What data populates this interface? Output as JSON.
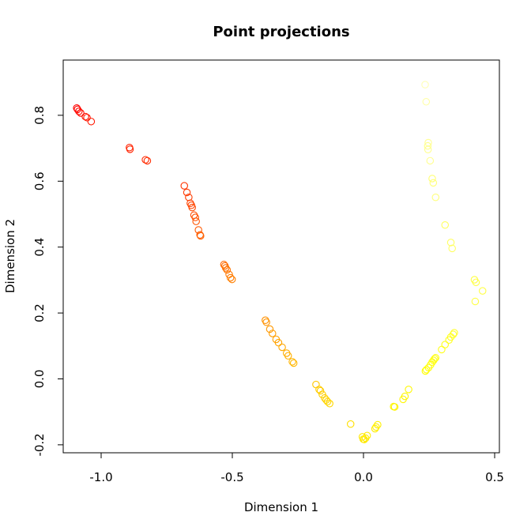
{
  "chart_data": {
    "type": "scatter",
    "title": "Point projections",
    "xlabel": "Dimension 1",
    "ylabel": "Dimension 2",
    "xlim": [
      -1.1,
      0.5
    ],
    "ylim": [
      -0.2,
      0.9
    ],
    "xticks": [
      -1.0,
      -0.5,
      0.0,
      0.5
    ],
    "xtick_labels": [
      "-1.0",
      "-0.5",
      "0.0",
      "0.5"
    ],
    "yticks": [
      -0.2,
      0.0,
      0.2,
      0.4,
      0.6,
      0.8
    ],
    "ytick_labels": [
      "-0.2",
      "0.0",
      "0.2",
      "0.4",
      "0.6",
      "0.8"
    ],
    "grid": false,
    "marker": "open-circle",
    "color_scale": [
      "#ff0000",
      "#ff6400",
      "#ffc800",
      "#ffff00",
      "#ffffbe"
    ],
    "points": [
      {
        "x": -1.093,
        "y": 0.822,
        "c": 0.0
      },
      {
        "x": -1.09,
        "y": 0.818,
        "c": 0.01
      },
      {
        "x": -1.085,
        "y": 0.812,
        "c": 0.02
      },
      {
        "x": -1.078,
        "y": 0.807,
        "c": 0.03
      },
      {
        "x": -1.06,
        "y": 0.796,
        "c": 0.04
      },
      {
        "x": -1.054,
        "y": 0.793,
        "c": 0.05
      },
      {
        "x": -1.038,
        "y": 0.781,
        "c": 0.06
      },
      {
        "x": -0.892,
        "y": 0.702,
        "c": 0.08
      },
      {
        "x": -0.89,
        "y": 0.697,
        "c": 0.09
      },
      {
        "x": -0.831,
        "y": 0.665,
        "c": 0.1
      },
      {
        "x": -0.824,
        "y": 0.662,
        "c": 0.11
      },
      {
        "x": -0.683,
        "y": 0.586,
        "c": 0.13
      },
      {
        "x": -0.673,
        "y": 0.566,
        "c": 0.14
      },
      {
        "x": -0.666,
        "y": 0.551,
        "c": 0.15
      },
      {
        "x": -0.66,
        "y": 0.533,
        "c": 0.16
      },
      {
        "x": -0.656,
        "y": 0.527,
        "c": 0.17
      },
      {
        "x": -0.653,
        "y": 0.52,
        "c": 0.18
      },
      {
        "x": -0.646,
        "y": 0.497,
        "c": 0.19
      },
      {
        "x": -0.641,
        "y": 0.49,
        "c": 0.2
      },
      {
        "x": -0.638,
        "y": 0.478,
        "c": 0.21
      },
      {
        "x": -0.629,
        "y": 0.452,
        "c": 0.22
      },
      {
        "x": -0.623,
        "y": 0.437,
        "c": 0.23
      },
      {
        "x": -0.621,
        "y": 0.434,
        "c": 0.24
      },
      {
        "x": -0.532,
        "y": 0.347,
        "c": 0.26
      },
      {
        "x": -0.528,
        "y": 0.343,
        "c": 0.27
      },
      {
        "x": -0.525,
        "y": 0.337,
        "c": 0.28
      },
      {
        "x": -0.52,
        "y": 0.331,
        "c": 0.29
      },
      {
        "x": -0.512,
        "y": 0.317,
        "c": 0.3
      },
      {
        "x": -0.507,
        "y": 0.307,
        "c": 0.31
      },
      {
        "x": -0.501,
        "y": 0.302,
        "c": 0.32
      },
      {
        "x": -0.374,
        "y": 0.178,
        "c": 0.36
      },
      {
        "x": -0.37,
        "y": 0.172,
        "c": 0.37
      },
      {
        "x": -0.357,
        "y": 0.151,
        "c": 0.38
      },
      {
        "x": -0.347,
        "y": 0.138,
        "c": 0.39
      },
      {
        "x": -0.333,
        "y": 0.12,
        "c": 0.4
      },
      {
        "x": -0.324,
        "y": 0.11,
        "c": 0.41
      },
      {
        "x": -0.31,
        "y": 0.096,
        "c": 0.42
      },
      {
        "x": -0.293,
        "y": 0.078,
        "c": 0.43
      },
      {
        "x": -0.287,
        "y": 0.07,
        "c": 0.44
      },
      {
        "x": -0.271,
        "y": 0.052,
        "c": 0.45
      },
      {
        "x": -0.266,
        "y": 0.048,
        "c": 0.46
      },
      {
        "x": -0.181,
        "y": -0.017,
        "c": 0.5
      },
      {
        "x": -0.169,
        "y": -0.032,
        "c": 0.51
      },
      {
        "x": -0.164,
        "y": -0.036,
        "c": 0.52
      },
      {
        "x": -0.157,
        "y": -0.047,
        "c": 0.53
      },
      {
        "x": -0.148,
        "y": -0.058,
        "c": 0.54
      },
      {
        "x": -0.142,
        "y": -0.064,
        "c": 0.55
      },
      {
        "x": -0.137,
        "y": -0.069,
        "c": 0.56
      },
      {
        "x": -0.129,
        "y": -0.075,
        "c": 0.57
      },
      {
        "x": -0.049,
        "y": -0.137,
        "c": 0.61
      },
      {
        "x": -0.004,
        "y": -0.176,
        "c": 0.64
      },
      {
        "x": -0.001,
        "y": -0.183,
        "c": 0.645
      },
      {
        "x": 0.003,
        "y": -0.184,
        "c": 0.65
      },
      {
        "x": 0.008,
        "y": -0.18,
        "c": 0.655
      },
      {
        "x": 0.014,
        "y": -0.172,
        "c": 0.66
      },
      {
        "x": 0.044,
        "y": -0.151,
        "c": 0.67
      },
      {
        "x": 0.048,
        "y": -0.146,
        "c": 0.675
      },
      {
        "x": 0.054,
        "y": -0.139,
        "c": 0.68
      },
      {
        "x": 0.115,
        "y": -0.084,
        "c": 0.7
      },
      {
        "x": 0.119,
        "y": -0.085,
        "c": 0.705
      },
      {
        "x": 0.151,
        "y": -0.062,
        "c": 0.71
      },
      {
        "x": 0.158,
        "y": -0.053,
        "c": 0.715
      },
      {
        "x": 0.172,
        "y": -0.032,
        "c": 0.72
      },
      {
        "x": 0.236,
        "y": 0.024,
        "c": 0.74
      },
      {
        "x": 0.24,
        "y": 0.028,
        "c": 0.745
      },
      {
        "x": 0.248,
        "y": 0.034,
        "c": 0.75
      },
      {
        "x": 0.256,
        "y": 0.043,
        "c": 0.755
      },
      {
        "x": 0.262,
        "y": 0.051,
        "c": 0.76
      },
      {
        "x": 0.267,
        "y": 0.056,
        "c": 0.765
      },
      {
        "x": 0.271,
        "y": 0.061,
        "c": 0.77
      },
      {
        "x": 0.275,
        "y": 0.064,
        "c": 0.775
      },
      {
        "x": 0.298,
        "y": 0.089,
        "c": 0.78
      },
      {
        "x": 0.311,
        "y": 0.104,
        "c": 0.785
      },
      {
        "x": 0.326,
        "y": 0.118,
        "c": 0.79
      },
      {
        "x": 0.333,
        "y": 0.127,
        "c": 0.795
      },
      {
        "x": 0.342,
        "y": 0.135,
        "c": 0.8
      },
      {
        "x": 0.346,
        "y": 0.14,
        "c": 0.805
      },
      {
        "x": 0.423,
        "y": 0.301,
        "c": 0.83
      },
      {
        "x": 0.429,
        "y": 0.293,
        "c": 0.835
      },
      {
        "x": 0.454,
        "y": 0.267,
        "c": 0.84
      },
      {
        "x": 0.426,
        "y": 0.235,
        "c": 0.845
      },
      {
        "x": 0.311,
        "y": 0.467,
        "c": 0.87
      },
      {
        "x": 0.333,
        "y": 0.414,
        "c": 0.875
      },
      {
        "x": 0.338,
        "y": 0.396,
        "c": 0.88
      },
      {
        "x": 0.262,
        "y": 0.608,
        "c": 0.9
      },
      {
        "x": 0.266,
        "y": 0.595,
        "c": 0.905
      },
      {
        "x": 0.275,
        "y": 0.551,
        "c": 0.91
      },
      {
        "x": 0.245,
        "y": 0.707,
        "c": 0.93
      },
      {
        "x": 0.246,
        "y": 0.696,
        "c": 0.935
      },
      {
        "x": 0.254,
        "y": 0.662,
        "c": 0.94
      },
      {
        "x": 0.247,
        "y": 0.717,
        "c": 0.945
      },
      {
        "x": 0.239,
        "y": 0.841,
        "c": 0.97
      },
      {
        "x": 0.235,
        "y": 0.893,
        "c": 0.99
      }
    ]
  }
}
